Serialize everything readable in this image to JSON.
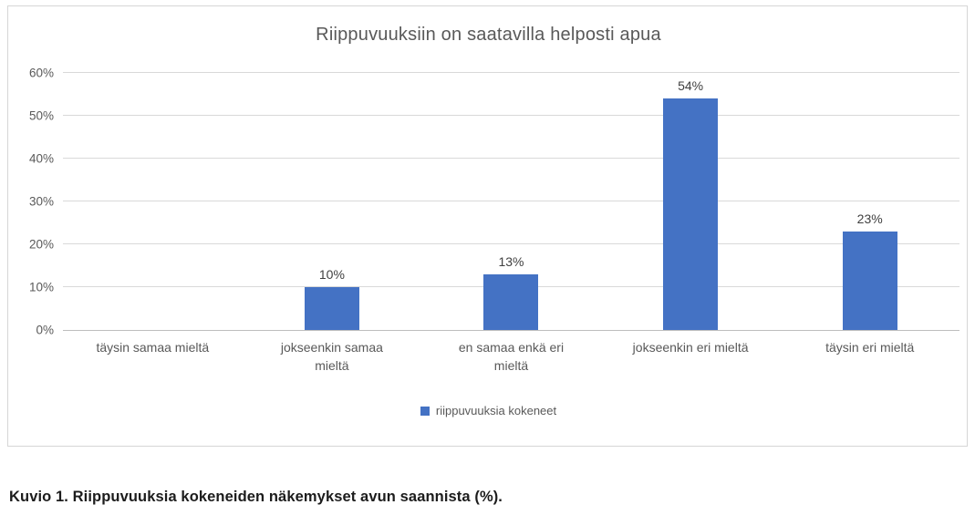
{
  "chart_data": {
    "type": "bar",
    "title": "Riippuvuuksiin on saatavilla helposti apua",
    "categories": [
      "täysin samaa mieltä",
      "jokseenkin samaa mieltä",
      "en samaa enkä eri mieltä",
      "jokseenkin eri mieltä",
      "täysin eri mieltä"
    ],
    "series": [
      {
        "name": "riippuvuuksia kokeneet",
        "values": [
          0,
          10,
          13,
          54,
          23
        ]
      }
    ],
    "value_labels": [
      "",
      "10%",
      "13%",
      "54%",
      "23%"
    ],
    "ylim": [
      0,
      60
    ],
    "ytick_step": 10,
    "ytick_labels": [
      "0%",
      "10%",
      "20%",
      "30%",
      "40%",
      "50%",
      "60%"
    ],
    "grid": true,
    "legend_position": "bottom",
    "bar_color": "#4472C4",
    "xlabel": "",
    "ylabel": ""
  },
  "caption": "Kuvio 1. Riippuvuuksia kokeneiden näkemykset avun saannista (%)."
}
